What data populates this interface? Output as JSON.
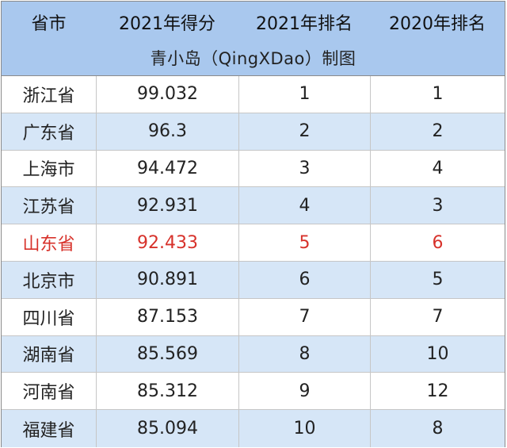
{
  "header": {
    "columns": [
      "省市",
      "2021年得分",
      "2021年排名",
      "2020年排名"
    ],
    "subtitle": "青小岛（QingXDao）制图"
  },
  "rows": [
    {
      "province": "浙江省",
      "score_2021": "99.032",
      "rank_2021": "1",
      "rank_2020": "1"
    },
    {
      "province": "广东省",
      "score_2021": "96.3",
      "rank_2021": "2",
      "rank_2020": "2"
    },
    {
      "province": "上海市",
      "score_2021": "94.472",
      "rank_2021": "3",
      "rank_2020": "4"
    },
    {
      "province": "江苏省",
      "score_2021": "92.931",
      "rank_2021": "4",
      "rank_2020": "3"
    },
    {
      "province": "山东省",
      "score_2021": "92.433",
      "rank_2021": "5",
      "rank_2020": "6"
    },
    {
      "province": "北京市",
      "score_2021": "90.891",
      "rank_2021": "6",
      "rank_2020": "5"
    },
    {
      "province": "四川省",
      "score_2021": "87.153",
      "rank_2021": "7",
      "rank_2020": "7"
    },
    {
      "province": "湖南省",
      "score_2021": "85.569",
      "rank_2021": "8",
      "rank_2020": "10"
    },
    {
      "province": "河南省",
      "score_2021": "85.312",
      "rank_2021": "9",
      "rank_2020": "12"
    },
    {
      "province": "福建省",
      "score_2021": "85.094",
      "rank_2021": "10",
      "rank_2020": "8"
    }
  ],
  "colors": {
    "header_background": "#a9c8ee",
    "alternate_row_background": "#d6e6f7",
    "highlight_text": "#d7322b"
  }
}
